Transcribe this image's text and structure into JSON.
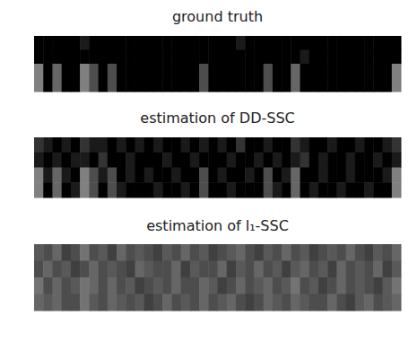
{
  "chart_data": [
    {
      "type": "heatmap",
      "title": "ground truth",
      "tick_labels": false,
      "cells": [
        [
          0,
          0,
          0,
          0,
          0,
          0.1,
          0,
          0,
          0,
          0,
          0,
          0,
          0,
          0,
          0,
          0,
          0,
          0,
          0,
          0,
          0,
          0,
          0.1,
          0,
          0,
          0,
          0,
          0,
          0,
          0,
          0,
          0,
          0,
          0,
          0,
          0,
          0,
          0,
          0,
          0
        ],
        [
          0,
          0,
          0,
          0,
          0,
          0,
          0,
          0,
          0,
          0,
          0,
          0,
          0,
          0,
          0,
          0,
          0,
          0,
          0,
          0,
          0,
          0,
          0,
          0,
          0,
          0,
          0,
          0,
          0,
          0.1,
          0,
          0,
          0,
          0,
          0,
          0,
          0,
          0,
          0,
          0
        ],
        [
          0.5,
          0,
          0.4,
          0,
          0,
          0.5,
          0.3,
          0,
          0.3,
          0,
          0,
          0,
          0,
          0,
          0,
          0,
          0,
          0,
          0.3,
          0,
          0,
          0,
          0,
          0,
          0,
          0.3,
          0,
          0,
          0.4,
          0,
          0,
          0,
          0,
          0,
          0,
          0,
          0,
          0,
          0,
          0.5
        ],
        [
          0.5,
          0,
          0.4,
          0,
          0,
          0.5,
          0.3,
          0,
          0.3,
          0,
          0,
          0,
          0,
          0,
          0,
          0,
          0,
          0,
          0.3,
          0,
          0,
          0,
          0,
          0,
          0,
          0.3,
          0,
          0,
          0.4,
          0,
          0,
          0,
          0,
          0,
          0,
          0,
          0,
          0,
          0,
          0.5
        ]
      ]
    },
    {
      "type": "heatmap",
      "title": "estimation of DD-SSC",
      "tick_labels": false,
      "cells": [
        [
          0.2,
          0.1,
          0,
          0.1,
          0,
          0.2,
          0.1,
          0.1,
          0,
          0.1,
          0,
          0.1,
          0,
          0.1,
          0,
          0,
          0.1,
          0,
          0.1,
          0,
          0.1,
          0,
          0.2,
          0,
          0,
          0.1,
          0,
          0,
          0.2,
          0.1,
          0,
          0,
          0.1,
          0,
          0,
          0.1,
          0,
          0,
          0.1,
          0.2
        ],
        [
          0.1,
          0,
          0.1,
          0,
          0.1,
          0.1,
          0,
          0.2,
          0,
          0,
          0.1,
          0,
          0,
          0,
          0.1,
          0,
          0,
          0.1,
          0,
          0,
          0,
          0.1,
          0,
          0,
          0.1,
          0,
          0.1,
          0,
          0.1,
          0.2,
          0,
          0.1,
          0,
          0,
          0.1,
          0,
          0,
          0.1,
          0,
          0.1
        ],
        [
          0.5,
          0.1,
          0.4,
          0.1,
          0,
          0.5,
          0.3,
          0.1,
          0.3,
          0,
          0.1,
          0,
          0.1,
          0,
          0,
          0.1,
          0,
          0,
          0.3,
          0,
          0.1,
          0,
          0,
          0.1,
          0,
          0.3,
          0,
          0.1,
          0.4,
          0,
          0,
          0.1,
          0,
          0,
          0.1,
          0,
          0,
          0,
          0.1,
          0.5
        ],
        [
          0.5,
          0,
          0.4,
          0,
          0.1,
          0.5,
          0.3,
          0,
          0.3,
          0.1,
          0,
          0,
          0,
          0.1,
          0,
          0,
          0.1,
          0,
          0.3,
          0,
          0,
          0.1,
          0,
          0,
          0,
          0.3,
          0.1,
          0,
          0.4,
          0,
          0.1,
          0,
          0,
          0.1,
          0,
          0,
          0.1,
          0,
          0,
          0.5
        ]
      ]
    },
    {
      "type": "heatmap",
      "title": "estimation of l₁-SSC",
      "tick_labels": false,
      "cells": [
        [
          0.35,
          0.3,
          0.4,
          0.25,
          0.3,
          0.45,
          0.3,
          0.35,
          0.25,
          0.4,
          0.3,
          0.35,
          0.3,
          0.25,
          0.35,
          0.3,
          0.4,
          0.3,
          0.35,
          0.25,
          0.3,
          0.35,
          0.4,
          0.3,
          0.25,
          0.35,
          0.3,
          0.4,
          0.3,
          0.35,
          0.25,
          0.3,
          0.35,
          0.3,
          0.4,
          0.3,
          0.25,
          0.35,
          0.3,
          0.4
        ],
        [
          0.3,
          0.4,
          0.3,
          0.35,
          0.25,
          0.3,
          0.4,
          0.3,
          0.35,
          0.3,
          0.25,
          0.4,
          0.35,
          0.3,
          0.3,
          0.4,
          0.25,
          0.35,
          0.3,
          0.3,
          0.4,
          0.25,
          0.35,
          0.3,
          0.4,
          0.3,
          0.35,
          0.25,
          0.35,
          0.4,
          0.3,
          0.35,
          0.25,
          0.4,
          0.3,
          0.35,
          0.3,
          0.4,
          0.25,
          0.35
        ],
        [
          0.45,
          0.3,
          0.4,
          0.3,
          0.35,
          0.45,
          0.4,
          0.3,
          0.4,
          0.3,
          0.35,
          0.25,
          0.3,
          0.35,
          0.3,
          0.4,
          0.3,
          0.3,
          0.4,
          0.35,
          0.25,
          0.3,
          0.4,
          0.3,
          0.35,
          0.4,
          0.3,
          0.35,
          0.45,
          0.3,
          0.35,
          0.25,
          0.3,
          0.4,
          0.3,
          0.35,
          0.3,
          0.25,
          0.35,
          0.45
        ],
        [
          0.4,
          0.35,
          0.4,
          0.3,
          0.3,
          0.45,
          0.35,
          0.3,
          0.4,
          0.35,
          0.3,
          0.35,
          0.25,
          0.3,
          0.4,
          0.3,
          0.35,
          0.3,
          0.4,
          0.3,
          0.35,
          0.4,
          0.3,
          0.25,
          0.3,
          0.4,
          0.35,
          0.3,
          0.4,
          0.35,
          0.3,
          0.3,
          0.4,
          0.3,
          0.25,
          0.35,
          0.4,
          0.3,
          0.35,
          0.4
        ]
      ]
    }
  ]
}
